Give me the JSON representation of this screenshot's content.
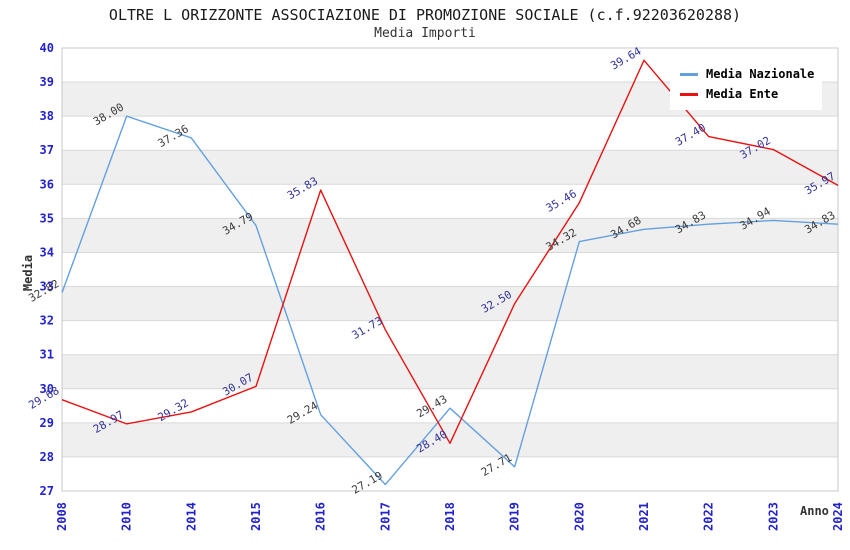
{
  "header": {
    "title": "OLTRE L ORIZZONTE ASSOCIAZIONE DI PROMOZIONE SOCIALE (c.f.92203620288)",
    "subtitle": "Media Importi"
  },
  "chart_data": {
    "type": "line",
    "x": [
      "2008",
      "2010",
      "2014",
      "2015",
      "2016",
      "2017",
      "2018",
      "2019",
      "2020",
      "2021",
      "2022",
      "2023",
      "2024"
    ],
    "series": [
      {
        "name": "Media Nazionale",
        "color": "#64a0e0",
        "label_color": "#3c3c3c",
        "values": [
          32.82,
          38.0,
          37.36,
          34.79,
          29.24,
          27.19,
          29.43,
          27.71,
          34.32,
          34.68,
          34.83,
          34.94,
          34.83
        ]
      },
      {
        "name": "Media Ente",
        "color": "#e81212",
        "label_color": "#333399",
        "values": [
          29.68,
          28.97,
          29.32,
          30.07,
          35.83,
          31.73,
          28.4,
          32.5,
          35.46,
          39.64,
          37.4,
          37.02,
          35.97
        ]
      }
    ],
    "xlabel": "Anno",
    "ylabel": "Media",
    "ylim": [
      27,
      40
    ],
    "yticks": [
      27,
      28,
      29,
      30,
      31,
      32,
      33,
      34,
      35,
      36,
      37,
      38,
      39,
      40
    ],
    "legend_position": "top-right",
    "grid": "horizontal-bands",
    "data_label_format": "2-decimals"
  },
  "colors": {
    "band": "#efefef",
    "gridline": "#d9d9d9",
    "plot_border": "#c8c8c8",
    "axis_tick": "#2222cc",
    "legend_text": "#000000"
  }
}
